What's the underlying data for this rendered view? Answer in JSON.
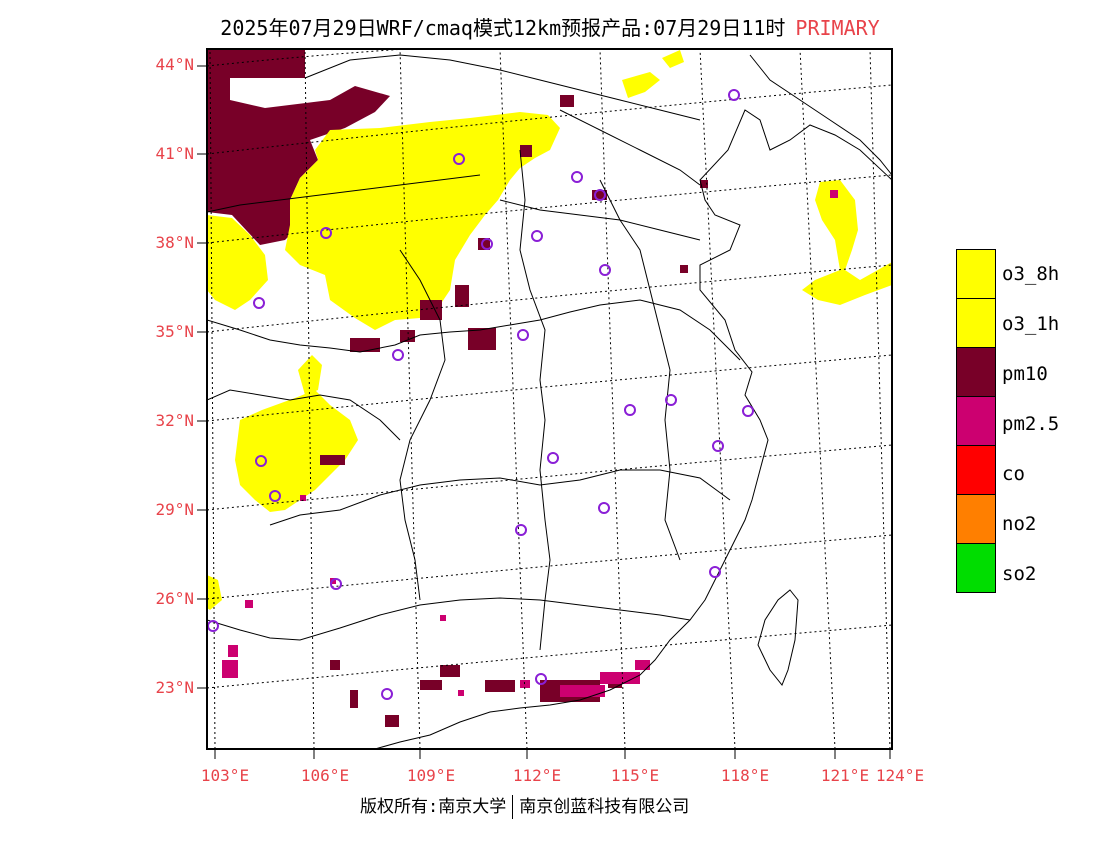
{
  "title": {
    "text": "2025年07月29日WRF/cmaq模式12km预报产品:07月29日11时",
    "tag": "PRIMARY"
  },
  "map": {
    "lat_labels": [
      "44°N",
      "41°N",
      "38°N",
      "35°N",
      "32°N",
      "29°N",
      "26°N",
      "23°N"
    ],
    "lon_labels": [
      "103°E",
      "106°E",
      "109°E",
      "112°E",
      "115°E",
      "118°E",
      "121°E",
      "124°E"
    ],
    "colors": {
      "o3_8h": "#ffff00",
      "o3_1h": "#ffff00",
      "pm10": "#780028",
      "pm25": "#cc0070",
      "co": "#ff0000",
      "no2": "#ff7f00",
      "so2": "#00dd00",
      "station": "#8a1fd6",
      "text_red": "#e8434a"
    }
  },
  "legend": [
    {
      "label": "o3_8h",
      "color": "#ffff00"
    },
    {
      "label": "o3_1h",
      "color": "#ffff00"
    },
    {
      "label": "pm10",
      "color": "#780028"
    },
    {
      "label": "pm2.5",
      "color": "#cc0070"
    },
    {
      "label": "co",
      "color": "#ff0000"
    },
    {
      "label": "no2",
      "color": "#ff7f00"
    },
    {
      "label": "so2",
      "color": "#00dd00"
    }
  ],
  "footer": {
    "left": "版权所有:南京大学",
    "right": "南京创蓝科技有限公司"
  }
}
